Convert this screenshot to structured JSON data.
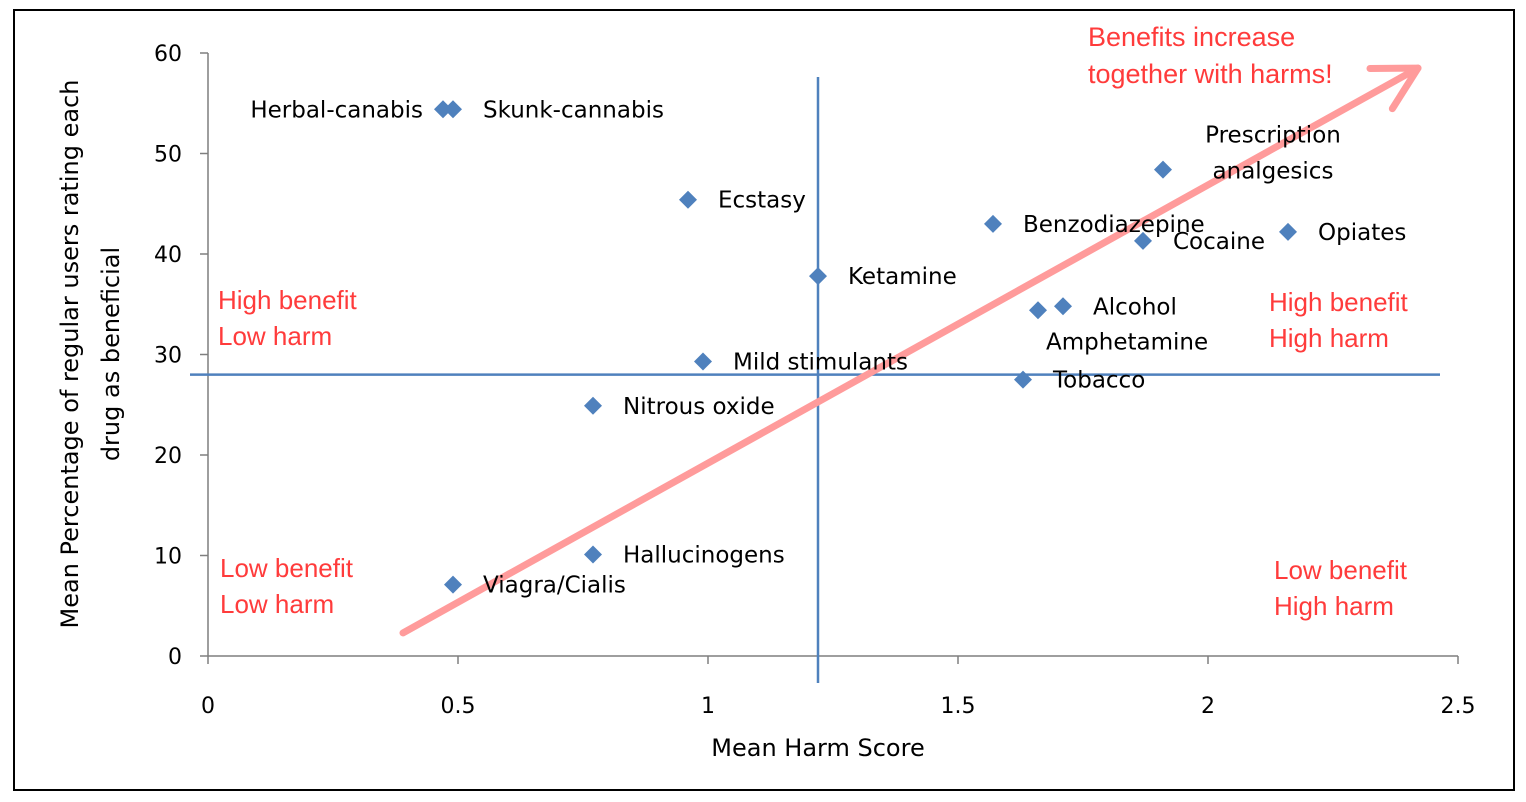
{
  "chart_data": {
    "type": "scatter",
    "title": "",
    "xlabel": "Mean Harm Score",
    "ylabel": "Mean Percentage of regular users rating each drug as beneficial",
    "ylabel_lines": [
      "Mean Percentage of regular users rating each",
      "drug as beneficial"
    ],
    "xlim": [
      0,
      2.5
    ],
    "ylim": [
      0,
      60
    ],
    "xticks": [
      "0",
      "0.5",
      "1",
      "1.5",
      "2",
      "2.5"
    ],
    "yticks": [
      "0",
      "10",
      "20",
      "30",
      "40",
      "50",
      "60"
    ],
    "marker_color": "#4f81bd",
    "annotation_color": "#ff3b3b",
    "trend_color": "#ff9b9b",
    "points": [
      {
        "name": "Herbal-canabis",
        "x": 0.47,
        "y": 54.4,
        "label_side": "left"
      },
      {
        "name": "Skunk-cannabis",
        "x": 0.49,
        "y": 54.4,
        "label_side": "right"
      },
      {
        "name": "Ecstasy",
        "x": 0.96,
        "y": 45.4,
        "label_side": "right"
      },
      {
        "name": "Ketamine",
        "x": 1.22,
        "y": 37.8,
        "label_side": "right"
      },
      {
        "name": "Mild stimulants",
        "x": 0.99,
        "y": 29.3,
        "label_side": "right"
      },
      {
        "name": "Nitrous oxide",
        "x": 0.77,
        "y": 24.9,
        "label_side": "right"
      },
      {
        "name": "Hallucinogens",
        "x": 0.77,
        "y": 10.1,
        "label_side": "right"
      },
      {
        "name": "Viagra/Cialis",
        "x": 0.49,
        "y": 7.1,
        "label_side": "right"
      },
      {
        "name": "Benzodiazepine",
        "x": 1.57,
        "y": 43.0,
        "label_side": "right"
      },
      {
        "name": "Prescription analgesics",
        "x": 1.91,
        "y": 48.4,
        "label_lines": [
          "Prescription",
          "analgesics"
        ],
        "label_side": "custom"
      },
      {
        "name": "Cocaine",
        "x": 1.87,
        "y": 41.3,
        "label_side": "right"
      },
      {
        "name": "Opiates",
        "x": 2.16,
        "y": 42.2,
        "label_side": "right"
      },
      {
        "name": "Alcohol",
        "x": 1.71,
        "y": 34.8,
        "label_side": "right"
      },
      {
        "name": "Amphetamine",
        "x": 1.66,
        "y": 34.4,
        "label_side": "below"
      },
      {
        "name": "Tobacco",
        "x": 1.63,
        "y": 27.5,
        "label_side": "right"
      }
    ],
    "quadrant_dividers": {
      "x": 1.22,
      "y": 28
    },
    "quadrant_labels": [
      {
        "lines": [
          "High benefit",
          "Low harm"
        ],
        "position": "upper-left"
      },
      {
        "lines": [
          "High benefit",
          "High harm"
        ],
        "position": "upper-right"
      },
      {
        "lines": [
          "Low benefit",
          "Low harm"
        ],
        "position": "lower-left"
      },
      {
        "lines": [
          "Low benefit",
          "High harm"
        ],
        "position": "lower-right"
      }
    ],
    "trend_arrow": {
      "from": [
        0.39,
        2.3
      ],
      "to": [
        2.42,
        58.5
      ]
    },
    "annotation": {
      "lines": [
        "Benefits increase",
        "together with harms!"
      ],
      "position": "top-right"
    }
  }
}
